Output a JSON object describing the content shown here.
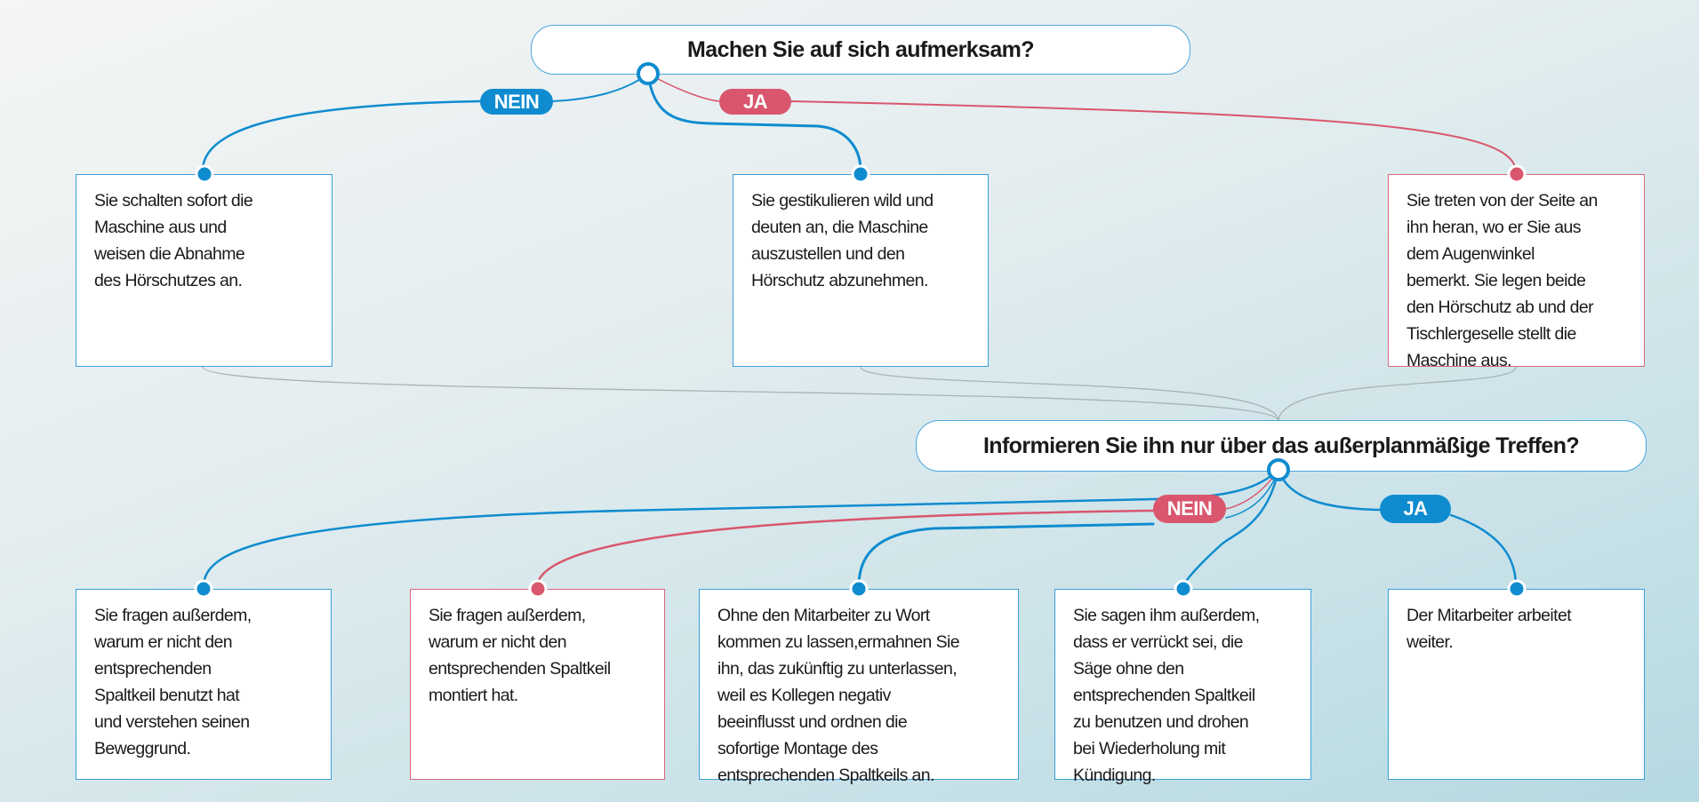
{
  "question1": {
    "text": "Machen Sie auf sich aufmerksam?",
    "no_label": "NEIN",
    "yes_label": "JA",
    "answers": [
      {
        "lines": [
          "Sie schalten sofort die",
          "Maschine aus und",
          "weisen die Abnahme",
          "des Hörschutzes an."
        ],
        "color": "blue"
      },
      {
        "lines": [
          "Sie gestikulieren wild und",
          "deuten an, die Maschine",
          "auszustellen und den",
          "Hörschutz abzunehmen."
        ],
        "color": "blue"
      },
      {
        "lines": [
          "Sie treten von der Seite an",
          "ihn heran, wo er Sie aus",
          "dem Augenwinkel",
          "bemerkt. Sie legen beide",
          "den Hörschutz ab und der",
          "Tischlergeselle stellt die",
          "Maschine aus."
        ],
        "color": "red"
      }
    ]
  },
  "question2": {
    "text": "Informieren Sie ihn nur über das außerplanmäßige Treffen?",
    "no_label": "NEIN",
    "yes_label": "JA",
    "answers": [
      {
        "lines": [
          "Sie fragen außerdem,",
          "warum er nicht den",
          "entsprechenden",
          "Spaltkeil benutzt hat",
          "und verstehen seinen",
          "Beweggrund."
        ],
        "color": "blue"
      },
      {
        "lines": [
          "Sie fragen außerdem,",
          "warum er nicht den",
          "entsprechenden Spaltkeil",
          "montiert hat."
        ],
        "color": "red"
      },
      {
        "lines": [
          "Ohne den Mitarbeiter zu Wort",
          "kommen zu lassen,ermahnen Sie",
          "ihn, das zukünftig zu unterlassen,",
          "weil es Kollegen negativ",
          "beeinflusst und ordnen die",
          "sofortige Montage des",
          "entsprechenden Spaltkeils an."
        ],
        "color": "blue"
      },
      {
        "lines": [
          "Sie sagen ihm außerdem,",
          "dass er verrückt sei, die",
          "Säge ohne den",
          "entsprechenden Spaltkeil",
          "zu benutzen und drohen",
          "bei Wiederholung mit",
          "Kündigung."
        ],
        "color": "blue"
      },
      {
        "lines": [
          "Der Mitarbeiter arbeitet",
          "weiter."
        ],
        "color": "blue"
      }
    ]
  },
  "colors": {
    "blue": "#0f8ccf",
    "red": "#d9566e",
    "grey": "#a9b3b6"
  }
}
